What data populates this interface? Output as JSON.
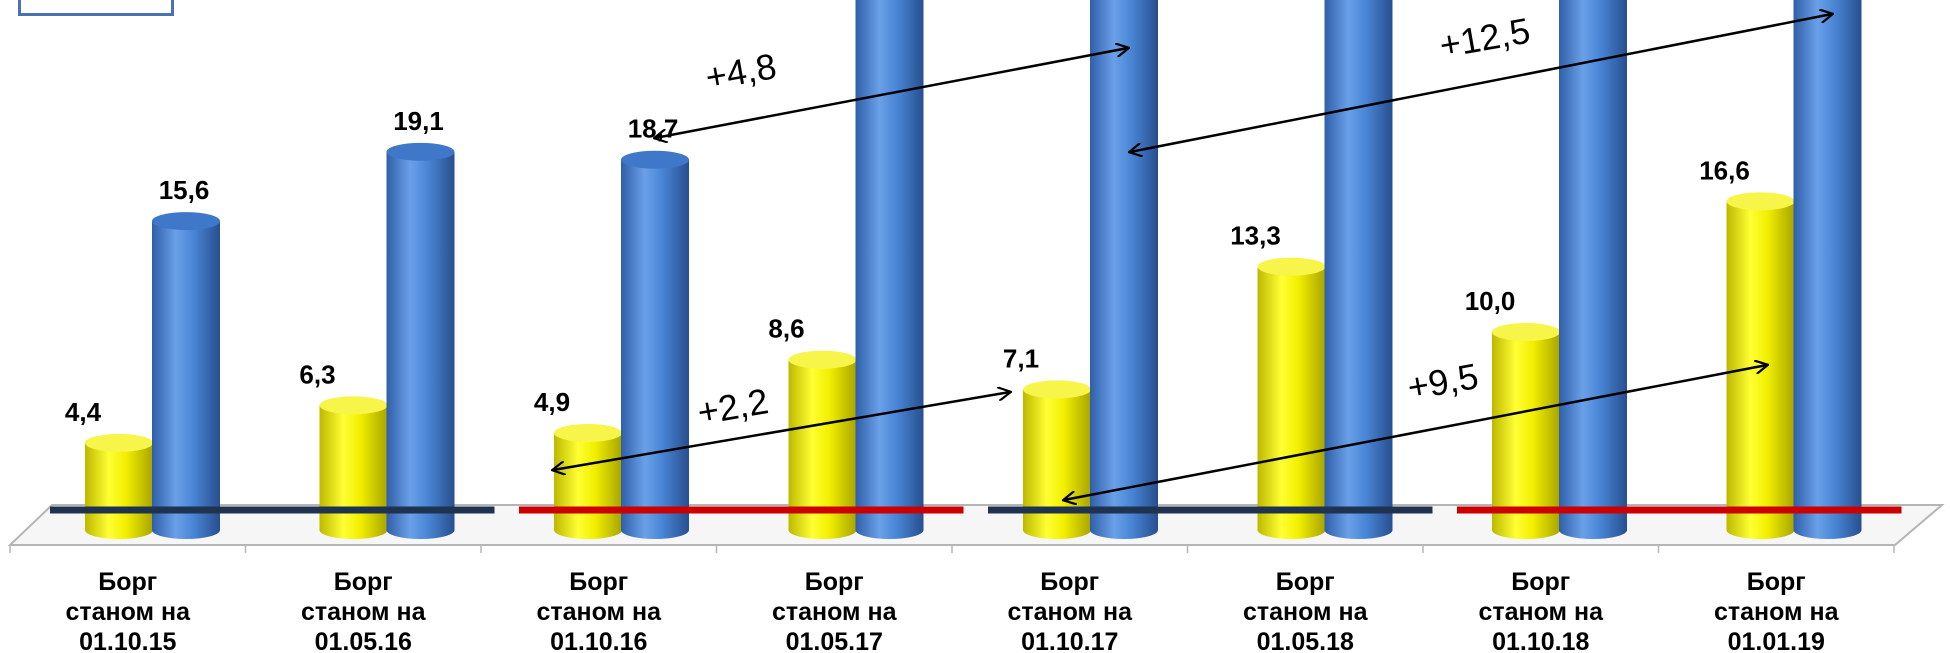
{
  "chart_data": {
    "type": "bar",
    "categories": [
      [
        "Борг",
        "станом на",
        "01.10.15"
      ],
      [
        "Борг",
        "станом на",
        "01.05.16"
      ],
      [
        "Борг",
        "станом на",
        "01.10.16"
      ],
      [
        "Борг",
        "станом на",
        "01.05.17"
      ],
      [
        "Борг",
        "станом на",
        "01.10.17"
      ],
      [
        "Борг",
        "станом на",
        "01.05.18"
      ],
      [
        "Борг",
        "станом на",
        "01.10.18"
      ],
      [
        "Борг",
        "станом на",
        "01.01.19"
      ]
    ],
    "series": [
      {
        "color": "#f2ef00",
        "values": [
          4.4,
          6.3,
          4.9,
          8.6,
          7.1,
          13.3,
          10.0,
          16.6
        ],
        "labels": [
          "4,4",
          "6,3",
          "4,9",
          "8,6",
          "7,1",
          "13,3",
          "10,0",
          "16,6"
        ]
      },
      {
        "color": "#4a86d6",
        "values": [
          15.6,
          19.1,
          18.7,
          null,
          null,
          null,
          null,
          null
        ],
        "labels": [
          "15,6",
          "19,1",
          "18,7",
          "",
          "",
          "",
          "",
          ""
        ]
      }
    ],
    "annotations": [
      {
        "text": "+4,8",
        "series": 1,
        "from": 2,
        "to": 4
      },
      {
        "text": "+12,5",
        "series": 1,
        "from": 4,
        "to": 7
      },
      {
        "text": "+2,2",
        "series": 0,
        "from": 2,
        "to": 4
      },
      {
        "text": "+9,5",
        "series": 0,
        "from": 4,
        "to": 7
      }
    ],
    "period_lines": [
      {
        "color": "#1f3250",
        "from": 0,
        "to": 1
      },
      {
        "color": "#cc0000",
        "from": 2,
        "to": 3
      },
      {
        "color": "#1f3250",
        "from": 4,
        "to": 5
      },
      {
        "color": "#cc0000",
        "from": 6,
        "to": 7
      }
    ],
    "title": "",
    "xlabel": "",
    "ylabel": "",
    "grid": false,
    "legend": "none"
  }
}
